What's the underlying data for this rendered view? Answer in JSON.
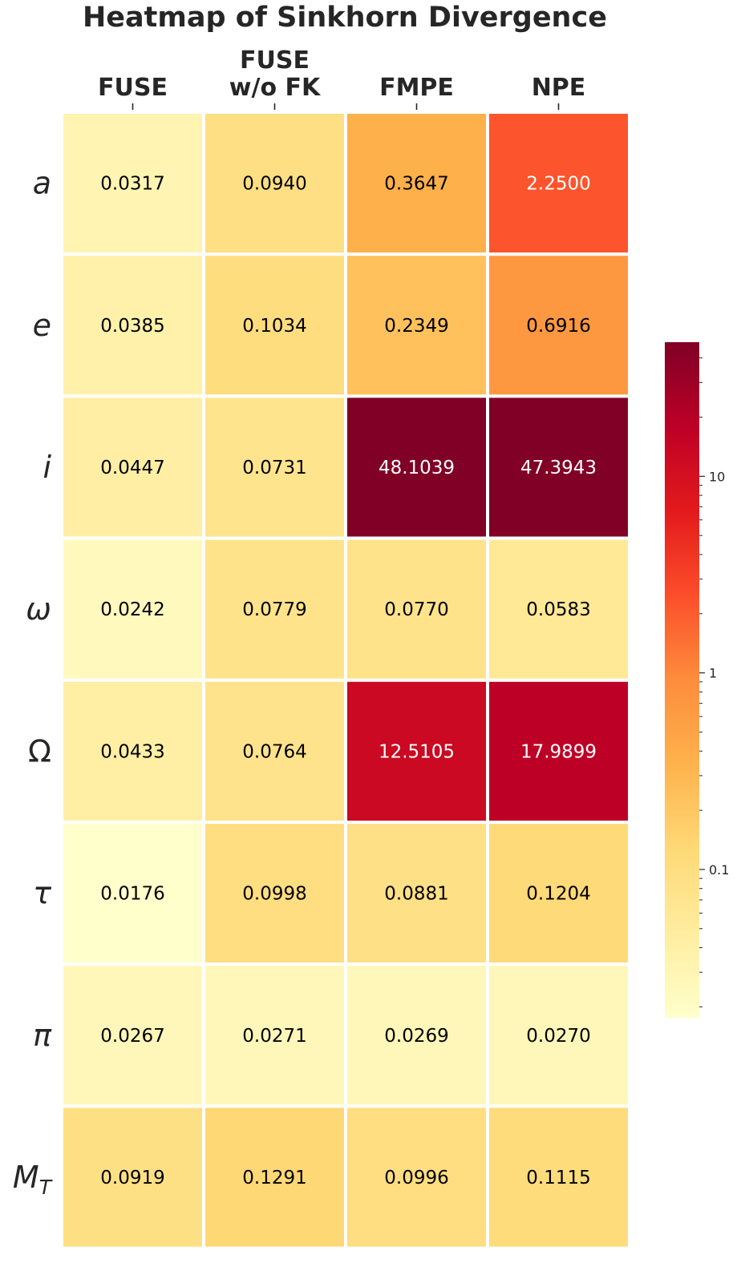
{
  "chart_data": {
    "type": "heatmap",
    "title": "Heatmap of Sinkhorn Divergence",
    "columns": [
      {
        "lines": [
          "FUSE"
        ]
      },
      {
        "lines": [
          "FUSE",
          "w/o FK"
        ]
      },
      {
        "lines": [
          "FMPE"
        ]
      },
      {
        "lines": [
          "NPE"
        ]
      }
    ],
    "rows": [
      {
        "symbol": "a",
        "sub": ""
      },
      {
        "symbol": "e",
        "sub": ""
      },
      {
        "symbol": "i",
        "sub": ""
      },
      {
        "symbol": "ω",
        "sub": ""
      },
      {
        "symbol": "Ω",
        "sub": "",
        "upright": true
      },
      {
        "symbol": "τ",
        "sub": ""
      },
      {
        "symbol": "π",
        "sub": ""
      },
      {
        "symbol": "M",
        "sub": "T"
      }
    ],
    "values": [
      [
        0.0317,
        0.094,
        0.3647,
        2.25
      ],
      [
        0.0385,
        0.1034,
        0.2349,
        0.6916
      ],
      [
        0.0447,
        0.0731,
        48.1039,
        47.3943
      ],
      [
        0.0242,
        0.0779,
        0.077,
        0.0583
      ],
      [
        0.0433,
        0.0764,
        12.5105,
        17.9899
      ],
      [
        0.0176,
        0.0998,
        0.0881,
        0.1204
      ],
      [
        0.0267,
        0.0271,
        0.0269,
        0.027
      ],
      [
        0.0919,
        0.1291,
        0.0996,
        0.1115
      ]
    ],
    "colorscale": "YlOrRd",
    "color_scale_type": "log",
    "color_range": [
      0.0176,
      48.1039
    ],
    "colorbar": {
      "ticks": [
        "10",
        "1",
        "0.1"
      ],
      "tick_values": [
        10,
        1,
        0.1
      ],
      "position": "right"
    }
  }
}
